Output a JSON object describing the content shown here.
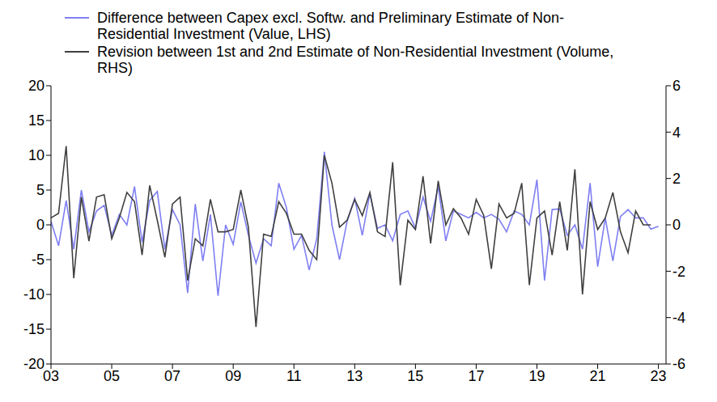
{
  "chart_data": {
    "type": "line",
    "x": [
      2003,
      2003.25,
      2003.5,
      2003.75,
      2004,
      2004.25,
      2004.5,
      2004.75,
      2005,
      2005.25,
      2005.5,
      2005.75,
      2006,
      2006.25,
      2006.5,
      2006.75,
      2007,
      2007.25,
      2007.5,
      2007.75,
      2008,
      2008.25,
      2008.5,
      2008.75,
      2009,
      2009.25,
      2009.5,
      2009.75,
      2010,
      2010.25,
      2010.5,
      2010.75,
      2011,
      2011.25,
      2011.5,
      2011.75,
      2012,
      2012.25,
      2012.5,
      2012.75,
      2013,
      2013.25,
      2013.5,
      2013.75,
      2014,
      2014.25,
      2014.5,
      2014.75,
      2015,
      2015.25,
      2015.5,
      2015.75,
      2016,
      2016.25,
      2016.5,
      2016.75,
      2017,
      2017.25,
      2017.5,
      2017.75,
      2018,
      2018.25,
      2018.5,
      2018.75,
      2019,
      2019.25,
      2019.5,
      2019.75,
      2020,
      2020.25,
      2020.5,
      2020.75,
      2021,
      2021.25,
      2021.5,
      2021.75,
      2022,
      2022.25,
      2022.5,
      2022.75,
      2023
    ],
    "series": [
      {
        "name": "Difference between Capex excl. Softw. and Preliminary Estimate of Non-Residential Investment (Value, LHS)",
        "color": "#7f7ff2",
        "axis": "y",
        "values": [
          0.5,
          -3,
          3.5,
          -3.5,
          5,
          -1,
          2,
          2.8,
          -1.5,
          1.5,
          0,
          5.5,
          -2.5,
          3.5,
          4.8,
          -3.5,
          2.2,
          0,
          -9.8,
          3,
          -5.2,
          1.5,
          -10.2,
          0,
          -2.8,
          3.3,
          -1.5,
          -5.5,
          -2,
          -3,
          6,
          2.5,
          -3.5,
          -1.5,
          -6.5,
          -2,
          10.5,
          0,
          -5,
          0.5,
          3.8,
          -1.5,
          4.5,
          -0.5,
          0,
          -2.3,
          1.5,
          2,
          -0.5,
          4,
          0.5,
          5.5,
          -2.3,
          2,
          1.5,
          1,
          1.8,
          1,
          1.5,
          0.8,
          -1,
          2,
          1.5,
          0,
          6.5,
          -8,
          2.2,
          2.3,
          -1.5,
          0,
          -3.5,
          6,
          -6,
          1,
          -5.2,
          1.2,
          2.2,
          1,
          1,
          -0.6,
          -0.2
        ]
      },
      {
        "name": "Revision between 1st and 2nd Estimate of Non-Residential Investment (Volume, RHS)",
        "color": "#404040",
        "axis": "y2",
        "values": [
          0.3,
          0.5,
          3.4,
          -2.3,
          1.2,
          -0.7,
          1.2,
          1.3,
          -0.6,
          0.3,
          1.4,
          1,
          -1.3,
          1.7,
          0.2,
          -1.4,
          0.9,
          1.2,
          -2.4,
          -0.6,
          -0.9,
          1.1,
          -0.3,
          -0.3,
          -0.2,
          1.5,
          -0.1,
          -4.4,
          -0.4,
          -0.5,
          1,
          0.5,
          -0.4,
          -0.4,
          -1.1,
          -1.5,
          3,
          1.8,
          -0.1,
          0.2,
          1.1,
          0.4,
          1.4,
          -0.3,
          -0.5,
          2.7,
          -2.6,
          0.2,
          -0.2,
          2.1,
          -0.8,
          1.9,
          0,
          0.7,
          0.3,
          -0.4,
          1.1,
          0.4,
          -1.9,
          0.9,
          0.3,
          0.5,
          1.8,
          -2.6,
          0.3,
          0.6,
          -1.3,
          1,
          -1.1,
          2.4,
          -3,
          1,
          -0.2,
          0.3,
          1.4,
          -0.3,
          -1.2,
          0.6,
          0,
          0,
          null
        ]
      }
    ],
    "xlim": [
      2003,
      2023.25
    ],
    "xticks": [
      {
        "value": 2003,
        "label": "03"
      },
      {
        "value": 2005,
        "label": "05"
      },
      {
        "value": 2007,
        "label": "07"
      },
      {
        "value": 2009,
        "label": "09"
      },
      {
        "value": 2011,
        "label": "11"
      },
      {
        "value": 2013,
        "label": "13"
      },
      {
        "value": 2015,
        "label": "15"
      },
      {
        "value": 2017,
        "label": "17"
      },
      {
        "value": 2019,
        "label": "19"
      },
      {
        "value": 2021,
        "label": "21"
      },
      {
        "value": 2023,
        "label": "23"
      }
    ],
    "ylim": [
      -20,
      20
    ],
    "yticks": [
      -20,
      -15,
      -10,
      -5,
      0,
      5,
      10,
      15,
      20
    ],
    "y2lim": [
      -6,
      6
    ],
    "y2ticks": [
      -6,
      -4,
      -2,
      0,
      2,
      4,
      6
    ],
    "grid": false,
    "legend": "top left"
  }
}
